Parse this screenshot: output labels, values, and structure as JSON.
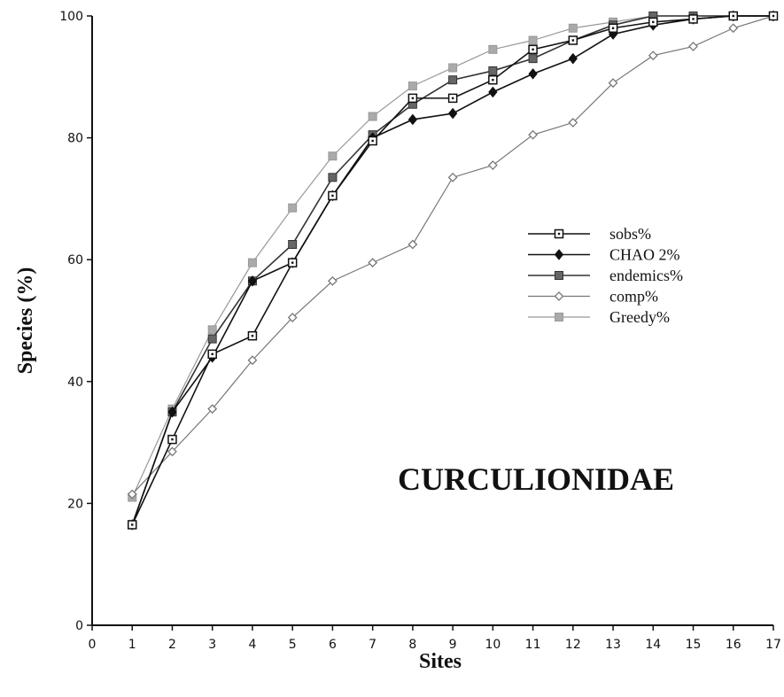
{
  "chart_data": {
    "type": "line",
    "title": "",
    "annotation": "CURCULIONIDAE",
    "xlabel": "Sites",
    "ylabel": "Species (%)",
    "xlim": [
      0,
      17
    ],
    "ylim": [
      0,
      100
    ],
    "x_ticks": [
      0,
      1,
      2,
      3,
      4,
      5,
      6,
      7,
      8,
      9,
      10,
      11,
      12,
      13,
      14,
      15,
      16,
      17
    ],
    "y_ticks": [
      0,
      20,
      40,
      60,
      80,
      100
    ],
    "grid": false,
    "legend_position": "right-middle",
    "series": [
      {
        "name": "sobs%",
        "marker": "open-square",
        "color": "#111111",
        "points": [
          [
            1,
            16.5
          ],
          [
            2,
            30.5
          ],
          [
            3,
            44.5
          ],
          [
            4,
            47.5
          ],
          [
            5,
            59.5
          ],
          [
            6,
            70.5
          ],
          [
            7,
            79.5
          ],
          [
            8,
            86.5
          ],
          [
            9,
            86.5
          ],
          [
            10,
            89.5
          ],
          [
            11,
            94.5
          ],
          [
            12,
            96.0
          ],
          [
            13,
            98.0
          ],
          [
            14,
            99.0
          ],
          [
            15,
            99.5
          ],
          [
            16,
            100
          ],
          [
            17,
            100
          ]
        ]
      },
      {
        "name": "CHAO 2%",
        "marker": "filled-diamond",
        "color": "#111111",
        "points": [
          [
            1,
            16.5
          ],
          [
            2,
            35.0
          ],
          [
            3,
            44.0
          ],
          [
            4,
            56.5
          ],
          [
            5,
            59.5
          ],
          [
            6,
            70.5
          ],
          [
            7,
            80.0
          ],
          [
            8,
            83.0
          ],
          [
            9,
            84.0
          ],
          [
            10,
            87.5
          ],
          [
            11,
            90.5
          ],
          [
            12,
            93.0
          ],
          [
            13,
            97.0
          ],
          [
            14,
            98.5
          ],
          [
            15,
            99.5
          ],
          [
            16,
            100
          ],
          [
            17,
            100
          ]
        ]
      },
      {
        "name": "endemics%",
        "marker": "gray-square",
        "color": "#333333",
        "points": [
          [
            1,
            16.5
          ],
          [
            2,
            35.0
          ],
          [
            3,
            47.0
          ],
          [
            4,
            56.5
          ],
          [
            5,
            62.5
          ],
          [
            6,
            73.5
          ],
          [
            7,
            80.5
          ],
          [
            8,
            85.5
          ],
          [
            9,
            89.5
          ],
          [
            10,
            91.0
          ],
          [
            11,
            93.0
          ],
          [
            12,
            96.0
          ],
          [
            13,
            98.5
          ],
          [
            14,
            100
          ],
          [
            15,
            100
          ],
          [
            16,
            100
          ],
          [
            17,
            100
          ]
        ]
      },
      {
        "name": "comp%",
        "marker": "open-diamond",
        "color": "#777777",
        "points": [
          [
            1,
            21.5
          ],
          [
            2,
            28.5
          ],
          [
            3,
            35.5
          ],
          [
            4,
            43.5
          ],
          [
            5,
            50.5
          ],
          [
            6,
            56.5
          ],
          [
            7,
            59.5
          ],
          [
            8,
            62.5
          ],
          [
            9,
            73.5
          ],
          [
            10,
            75.5
          ],
          [
            11,
            80.5
          ],
          [
            12,
            82.5
          ],
          [
            13,
            89.0
          ],
          [
            14,
            93.5
          ],
          [
            15,
            95.0
          ],
          [
            16,
            98.0
          ],
          [
            17,
            100
          ]
        ]
      },
      {
        "name": "Greedy%",
        "marker": "light-square",
        "color": "#999999",
        "points": [
          [
            1,
            21.0
          ],
          [
            2,
            35.5
          ],
          [
            3,
            48.5
          ],
          [
            4,
            59.5
          ],
          [
            5,
            68.5
          ],
          [
            6,
            77.0
          ],
          [
            7,
            83.5
          ],
          [
            8,
            88.5
          ],
          [
            9,
            91.5
          ],
          [
            10,
            94.5
          ],
          [
            11,
            96.0
          ],
          [
            12,
            98.0
          ],
          [
            13,
            99.0
          ],
          [
            14,
            100
          ],
          [
            15,
            100
          ],
          [
            16,
            100
          ],
          [
            17,
            100
          ]
        ]
      }
    ]
  }
}
